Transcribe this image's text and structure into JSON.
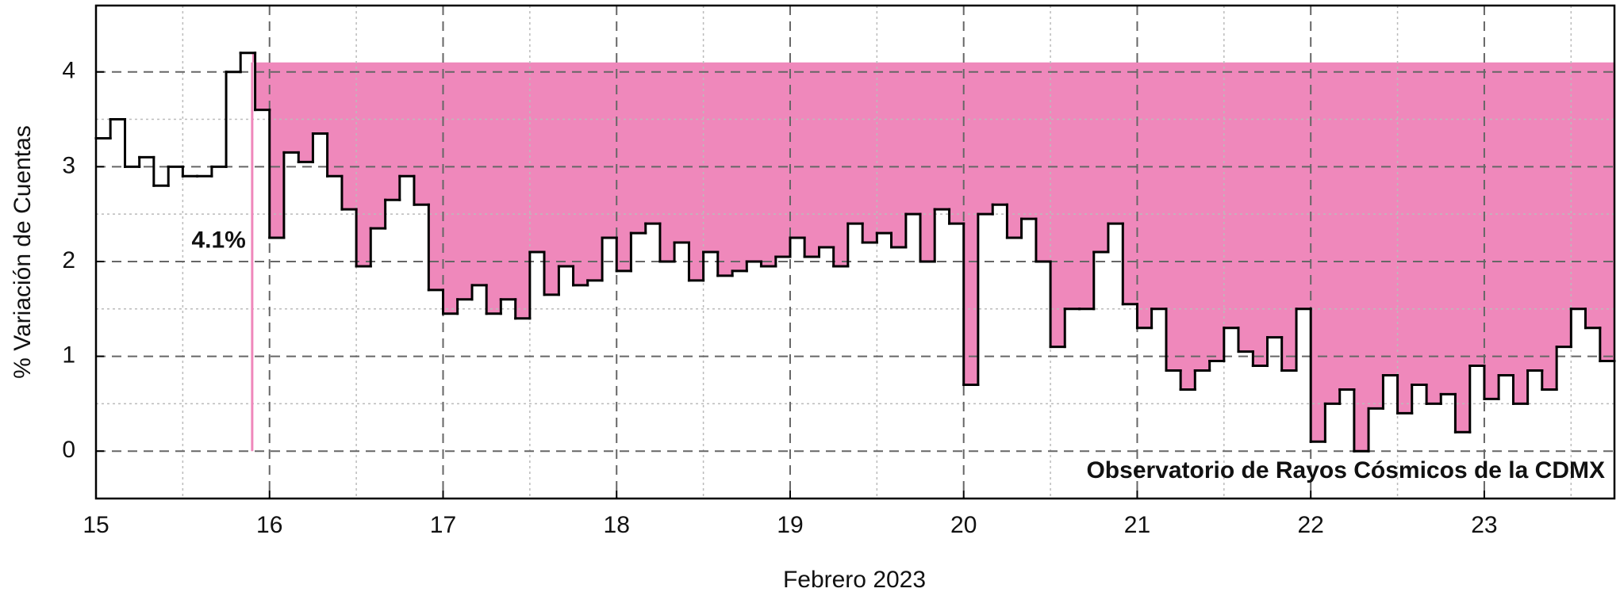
{
  "chart_data": {
    "type": "step",
    "xlabel": "Febrero 2023",
    "ylabel": "% Variación de Cuentas",
    "xlim": [
      15,
      23.75
    ],
    "ylim": [
      -0.5,
      4.7
    ],
    "xticks": [
      15,
      16,
      17,
      18,
      19,
      20,
      21,
      22,
      23
    ],
    "yticks": [
      0,
      1,
      2,
      3,
      4
    ],
    "xminorticks": [
      15.5,
      16.5,
      17.5,
      18.5,
      19.5,
      20.5,
      21.5,
      22.5,
      23.5
    ],
    "yminorticks": [
      0.5,
      1.5,
      2.5,
      3.5
    ],
    "grid": true,
    "fill_color": "#ef88bb",
    "series": [
      {
        "color": "#000000",
        "x": [
          15,
          15.083,
          15.167,
          15.25,
          15.333,
          15.417,
          15.5,
          15.583,
          15.667,
          15.75,
          15.833,
          15.917,
          16,
          16.083,
          16.167,
          16.25,
          16.333,
          16.417,
          16.5,
          16.583,
          16.667,
          16.75,
          16.833,
          16.917,
          17,
          17.083,
          17.167,
          17.25,
          17.333,
          17.417,
          17.5,
          17.583,
          17.667,
          17.75,
          17.833,
          17.917,
          18,
          18.083,
          18.167,
          18.25,
          18.333,
          18.417,
          18.5,
          18.583,
          18.667,
          18.75,
          18.833,
          18.917,
          19,
          19.083,
          19.167,
          19.25,
          19.333,
          19.417,
          19.5,
          19.583,
          19.667,
          19.75,
          19.833,
          19.917,
          20,
          20.083,
          20.167,
          20.25,
          20.333,
          20.417,
          20.5,
          20.583,
          20.667,
          20.75,
          20.833,
          20.917,
          21,
          21.083,
          21.167,
          21.25,
          21.333,
          21.417,
          21.5,
          21.583,
          21.667,
          21.75,
          21.833,
          21.917,
          22,
          22.083,
          22.167,
          22.25,
          22.333,
          22.417,
          22.5,
          22.583,
          22.667,
          22.75,
          22.833,
          22.917,
          23,
          23.083,
          23.167,
          23.25,
          23.333,
          23.417,
          23.5,
          23.583,
          23.667
        ],
        "values": [
          3.3,
          3.5,
          3.0,
          3.1,
          2.8,
          3.0,
          2.9,
          2.9,
          3.0,
          4.0,
          4.2,
          3.6,
          2.25,
          3.15,
          3.05,
          3.35,
          2.9,
          2.55,
          1.95,
          2.35,
          2.65,
          2.9,
          2.6,
          1.7,
          1.45,
          1.6,
          1.75,
          1.45,
          1.6,
          1.4,
          2.1,
          1.65,
          1.95,
          1.75,
          1.8,
          2.25,
          1.9,
          2.3,
          2.4,
          2.0,
          2.2,
          1.8,
          2.1,
          1.85,
          1.9,
          2.0,
          1.95,
          2.05,
          2.25,
          2.05,
          2.15,
          1.95,
          2.4,
          2.2,
          2.3,
          2.15,
          2.5,
          2.0,
          2.55,
          2.4,
          0.7,
          2.5,
          2.6,
          2.25,
          2.45,
          2.0,
          1.1,
          1.5,
          1.5,
          2.1,
          2.4,
          1.55,
          1.3,
          1.5,
          0.85,
          0.65,
          0.85,
          0.95,
          1.3,
          1.05,
          0.9,
          1.2,
          0.85,
          1.5,
          0.1,
          0.5,
          0.65,
          0.0,
          0.45,
          0.8,
          0.4,
          0.7,
          0.5,
          0.6,
          0.2,
          0.9,
          0.55,
          0.8,
          0.5,
          0.85,
          0.65,
          1.1,
          1.5,
          1.3,
          0.95
        ]
      }
    ],
    "annotations": [
      {
        "text": "4.1%",
        "x": 15.9,
        "value": 4.1,
        "color": "#ef88bb"
      },
      {
        "text": "Observatorio de Rayos Cósmicos de la CDMX"
      }
    ]
  }
}
